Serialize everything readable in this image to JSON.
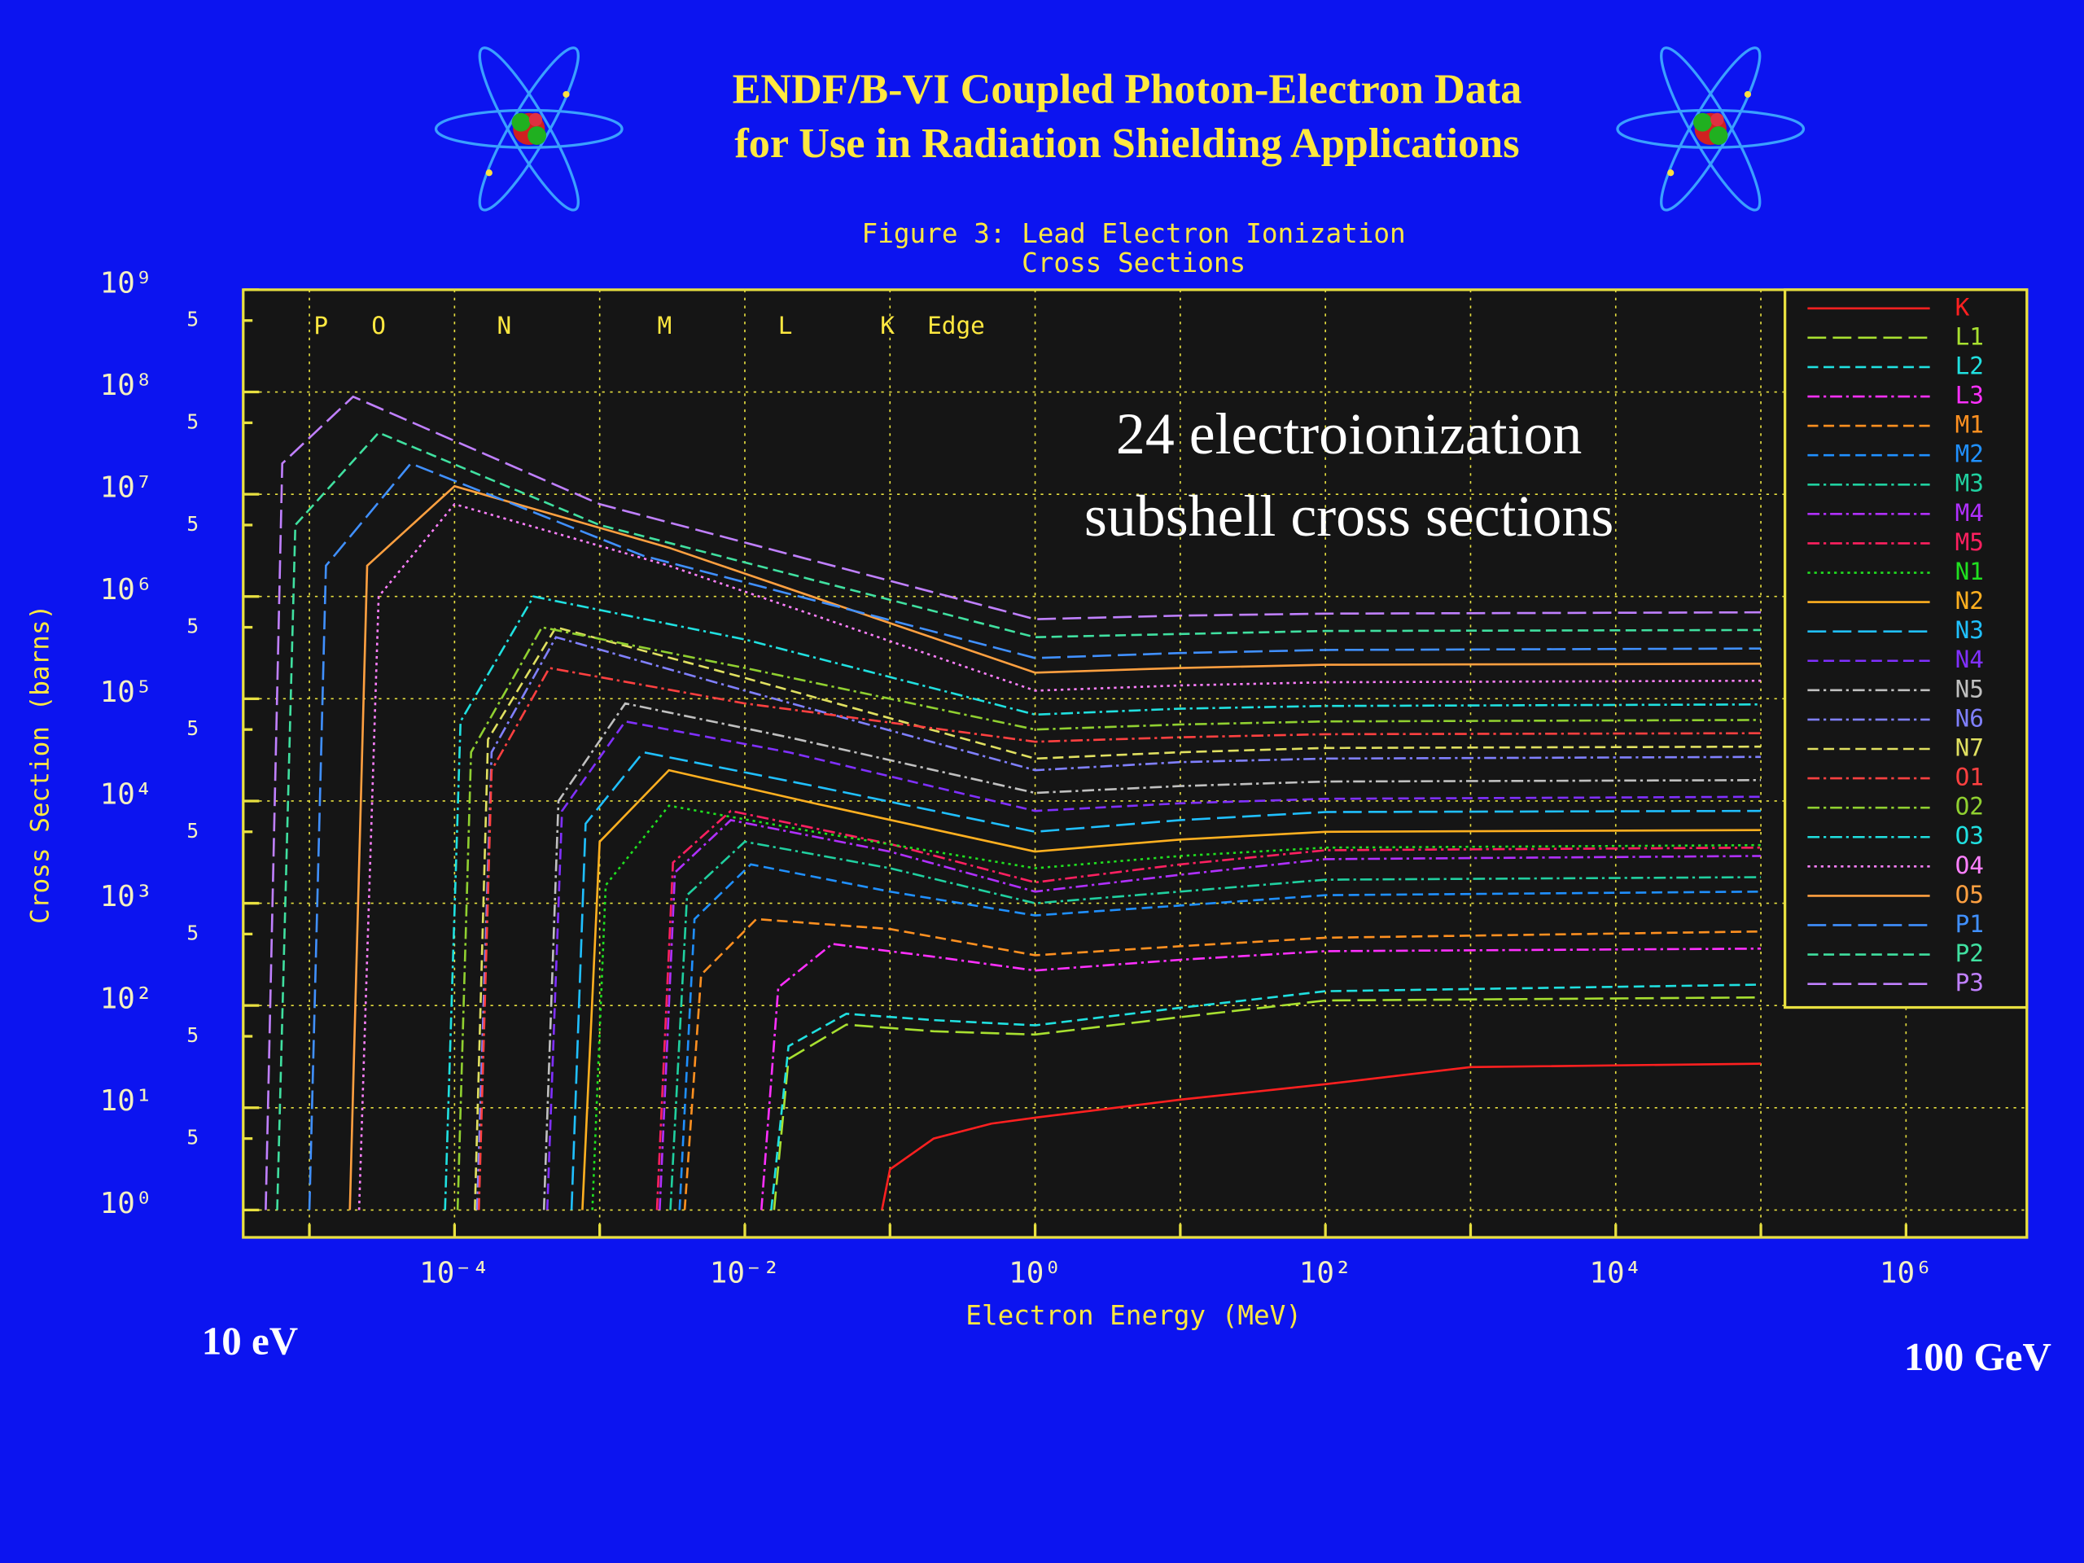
{
  "header": {
    "title_lines": [
      "ENDF/B-VI Coupled Photon-Electron Data",
      "for Use in Radiation Shielding Applications"
    ]
  },
  "chart_data": {
    "type": "line",
    "title_lines": [
      "Figure 3: Lead Electron Ionization",
      "Cross Sections"
    ],
    "xlabel": "Electron Energy (MeV)",
    "ylabel": "Cross Section (barns)",
    "xscale": "log",
    "yscale": "log",
    "grid": true,
    "legend": "upper right",
    "xlim": [
      3.5e-06,
      6800000.0
    ],
    "ylim": [
      0.54,
      1000000000.0
    ],
    "xticks": [
      {
        "value": 0.0001,
        "label": "10⁻⁴"
      },
      {
        "value": 0.01,
        "label": "10⁻²"
      },
      {
        "value": 1,
        "label": "10⁰"
      },
      {
        "value": 100,
        "label": "10²"
      },
      {
        "value": 10000,
        "label": "10⁴"
      },
      {
        "value": 1000000,
        "label": "10⁶"
      }
    ],
    "xgrid": [
      1e-05,
      0.001,
      0.1,
      10,
      1000,
      100000
    ],
    "yticks": [
      {
        "value": 1000000000.0,
        "label": "10⁹"
      },
      {
        "value": 100000000.0,
        "label": "10⁸"
      },
      {
        "value": 10000000.0,
        "label": "10⁷"
      },
      {
        "value": 1000000.0,
        "label": "10⁶"
      },
      {
        "value": 100000.0,
        "label": "10⁵"
      },
      {
        "value": 10000.0,
        "label": "10⁴"
      },
      {
        "value": 1000,
        "label": "10³"
      },
      {
        "value": 100,
        "label": "10²"
      },
      {
        "value": 10,
        "label": "10¹"
      },
      {
        "value": 1,
        "label": "10⁰"
      }
    ],
    "yminorticks": [
      {
        "value": 500000000.0,
        "label": "5"
      },
      {
        "value": 50000000.0,
        "label": "5"
      },
      {
        "value": 5000000.0,
        "label": "5"
      },
      {
        "value": 500000.0,
        "label": "5"
      },
      {
        "value": 50000.0,
        "label": "5"
      },
      {
        "value": 5000,
        "label": "5"
      },
      {
        "value": 500,
        "label": "5"
      },
      {
        "value": 50,
        "label": "5"
      },
      {
        "value": 5,
        "label": "5"
      }
    ],
    "edge_labels": [
      {
        "label": "P",
        "x": 1.2e-05
      },
      {
        "label": "O",
        "x": 3e-05
      },
      {
        "label": "N",
        "x": 0.00022
      },
      {
        "label": "M",
        "x": 0.0028
      },
      {
        "label": "L",
        "x": 0.019
      },
      {
        "label": "K",
        "x": 0.096
      }
    ],
    "edge_caption": "Edge",
    "annotation_lines": [
      "24 electroionization",
      "subshell cross sections"
    ],
    "range_labels": [
      "10 eV",
      "100 GeV"
    ],
    "series": [
      {
        "name": "K",
        "color": "#ff2020",
        "dash": "solid",
        "x": [
          0.088,
          0.1,
          0.2,
          0.5,
          1,
          10,
          100,
          1000,
          100000
        ],
        "values": [
          1,
          2.5,
          5,
          7,
          8,
          12,
          17,
          25,
          27
        ]
      },
      {
        "name": "L1",
        "color": "#a8e030",
        "dash": "longdash",
        "x": [
          0.0159,
          0.02,
          0.05,
          0.2,
          1,
          10,
          100,
          100000
        ],
        "values": [
          1,
          30,
          65,
          56,
          52,
          77,
          112,
          120
        ]
      },
      {
        "name": "L2",
        "color": "#20e0e0",
        "dash": "dashed",
        "x": [
          0.0152,
          0.02,
          0.05,
          0.2,
          1,
          10,
          100,
          100000
        ],
        "values": [
          1,
          40,
          83,
          72,
          64,
          95,
          138,
          160
        ]
      },
      {
        "name": "L3",
        "color": "#ff30ff",
        "dash": "dashdot",
        "x": [
          0.013,
          0.017,
          0.04,
          0.2,
          1,
          10,
          100,
          100000
        ],
        "values": [
          1,
          150,
          400,
          300,
          220,
          280,
          340,
          360
        ]
      },
      {
        "name": "M1",
        "color": "#ff9020",
        "dash": "dashed",
        "x": [
          0.00385,
          0.005,
          0.012,
          0.1,
          1,
          10,
          100,
          100000
        ],
        "values": [
          1,
          200,
          700,
          560,
          310,
          380,
          460,
          530
        ]
      },
      {
        "name": "M2",
        "color": "#2090ff",
        "dash": "dashed",
        "x": [
          0.00355,
          0.0045,
          0.011,
          0.1,
          1,
          10,
          100,
          100000
        ],
        "values": [
          1,
          700,
          2400,
          1300,
          760,
          950,
          1200,
          1300
        ]
      },
      {
        "name": "M3",
        "color": "#20d0a0",
        "dash": "dashdot",
        "x": [
          0.00307,
          0.004,
          0.01,
          0.1,
          1,
          10,
          100,
          100000
        ],
        "values": [
          1,
          1200,
          4000,
          2200,
          1000,
          1300,
          1700,
          1800
        ]
      },
      {
        "name": "M4",
        "color": "#b030ff",
        "dash": "dashdot",
        "x": [
          0.00259,
          0.0033,
          0.008,
          0.1,
          1,
          10,
          100,
          100000
        ],
        "values": [
          1,
          2000,
          6500,
          3200,
          1300,
          1900,
          2700,
          2900
        ]
      },
      {
        "name": "M5",
        "color": "#ff2060",
        "dash": "dashdot",
        "x": [
          0.00248,
          0.0032,
          0.008,
          0.1,
          1,
          10,
          100,
          100000
        ],
        "values": [
          1,
          2500,
          8000,
          3800,
          1600,
          2400,
          3300,
          3500
        ]
      },
      {
        "name": "N1",
        "color": "#20e020",
        "dash": "dotted",
        "x": [
          0.00089,
          0.0011,
          0.003,
          0.03,
          1,
          10,
          100,
          100000
        ],
        "values": [
          1,
          1500,
          9000,
          5000,
          2200,
          2900,
          3500,
          3700
        ]
      },
      {
        "name": "N2",
        "color": "#ffb020",
        "dash": "solid",
        "x": [
          0.00076,
          0.001,
          0.003,
          0.03,
          1,
          10,
          100,
          100000
        ],
        "values": [
          1,
          4000,
          20000,
          9500,
          3200,
          4200,
          5000,
          5200
        ]
      },
      {
        "name": "N3",
        "color": "#20c0ff",
        "dash": "longdash",
        "x": [
          0.00064,
          0.0008,
          0.002,
          0.03,
          1,
          10,
          100,
          100000
        ],
        "values": [
          1,
          6000,
          30000,
          14000,
          5000,
          6500,
          7800,
          8000
        ]
      },
      {
        "name": "N4",
        "color": "#8030ff",
        "dash": "dashed",
        "x": [
          0.000435,
          0.00055,
          0.0015,
          0.02,
          1,
          10,
          100,
          100000
        ],
        "values": [
          1,
          8000,
          60000,
          30000,
          8000,
          9500,
          10500,
          11000
        ]
      },
      {
        "name": "N5",
        "color": "#c0c0c0",
        "dash": "dashdot",
        "x": [
          0.000413,
          0.00052,
          0.0015,
          0.02,
          1,
          10,
          100,
          100000
        ],
        "values": [
          1,
          10000,
          90000,
          42000,
          12000,
          14000,
          15500,
          16000
        ]
      },
      {
        "name": "N6",
        "color": "#8080ff",
        "dash": "dashdot",
        "x": [
          0.000143,
          0.00018,
          0.0005,
          0.01,
          1,
          10,
          100,
          100000
        ],
        "values": [
          1,
          30000,
          400000,
          120000,
          20000,
          24000,
          26000,
          27000
        ]
      },
      {
        "name": "N7",
        "color": "#e0e060",
        "dash": "dashed",
        "x": [
          0.000138,
          0.00017,
          0.0005,
          0.01,
          1,
          10,
          100,
          100000
        ],
        "values": [
          1,
          40000,
          500000,
          160000,
          26000,
          30000,
          33000,
          34000
        ]
      },
      {
        "name": "O1",
        "color": "#ff4040",
        "dash": "dashdot",
        "x": [
          0.000147,
          0.00018,
          0.00045,
          0.01,
          1,
          10,
          100,
          100000
        ],
        "values": [
          1,
          20000,
          200000,
          90000,
          38000,
          42000,
          45000,
          46000
        ]
      },
      {
        "name": "O2",
        "color": "#90d030",
        "dash": "dashdot",
        "x": [
          0.000105,
          0.00013,
          0.0004,
          0.01,
          1,
          10,
          100,
          100000
        ],
        "values": [
          1,
          30000,
          500000,
          200000,
          50000,
          56000,
          60000,
          62000
        ]
      },
      {
        "name": "O3",
        "color": "#20e0e0",
        "dash": "dashdot",
        "x": [
          8.6e-05,
          0.00011,
          0.00035,
          0.01,
          1,
          10,
          100,
          100000
        ],
        "values": [
          1,
          60000,
          1000000,
          380000,
          70000,
          80000,
          85000,
          88000
        ]
      },
      {
        "name": "O4",
        "color": "#ff80ff",
        "dash": "dotted",
        "x": [
          2.2e-05,
          3e-05,
          0.0001,
          0.003,
          1,
          10,
          100,
          100000
        ],
        "values": [
          1,
          1000000,
          8000000,
          2000000,
          120000,
          135000,
          145000,
          150000
        ]
      },
      {
        "name": "O5",
        "color": "#ffa040",
        "dash": "solid",
        "x": [
          1.9e-05,
          2.5e-05,
          0.0001,
          0.003,
          1,
          10,
          100,
          100000
        ],
        "values": [
          1,
          2000000,
          12000000,
          3000000,
          180000,
          200000,
          215000,
          220000
        ]
      },
      {
        "name": "P1",
        "color": "#4090ff",
        "dash": "longdash",
        "x": [
          1e-05,
          1.3e-05,
          5e-05,
          0.002,
          1,
          10,
          100,
          100000
        ],
        "values": [
          1,
          2000000,
          20000000,
          2500000,
          250000,
          280000,
          300000,
          310000
        ]
      },
      {
        "name": "P2",
        "color": "#40e0a0",
        "dash": "dashed",
        "x": [
          6e-06,
          8e-06,
          3e-05,
          0.001,
          1,
          10,
          100,
          100000
        ],
        "values": [
          1,
          5000000,
          40000000,
          5000000,
          400000,
          430000,
          460000,
          470000
        ]
      },
      {
        "name": "P3",
        "color": "#c080ff",
        "dash": "longdash",
        "x": [
          5e-06,
          6.5e-06,
          2e-05,
          0.001,
          1,
          10,
          100,
          100000
        ],
        "values": [
          1,
          20000000,
          90000000,
          8000000,
          600000,
          650000,
          680000,
          700000
        ]
      }
    ]
  }
}
